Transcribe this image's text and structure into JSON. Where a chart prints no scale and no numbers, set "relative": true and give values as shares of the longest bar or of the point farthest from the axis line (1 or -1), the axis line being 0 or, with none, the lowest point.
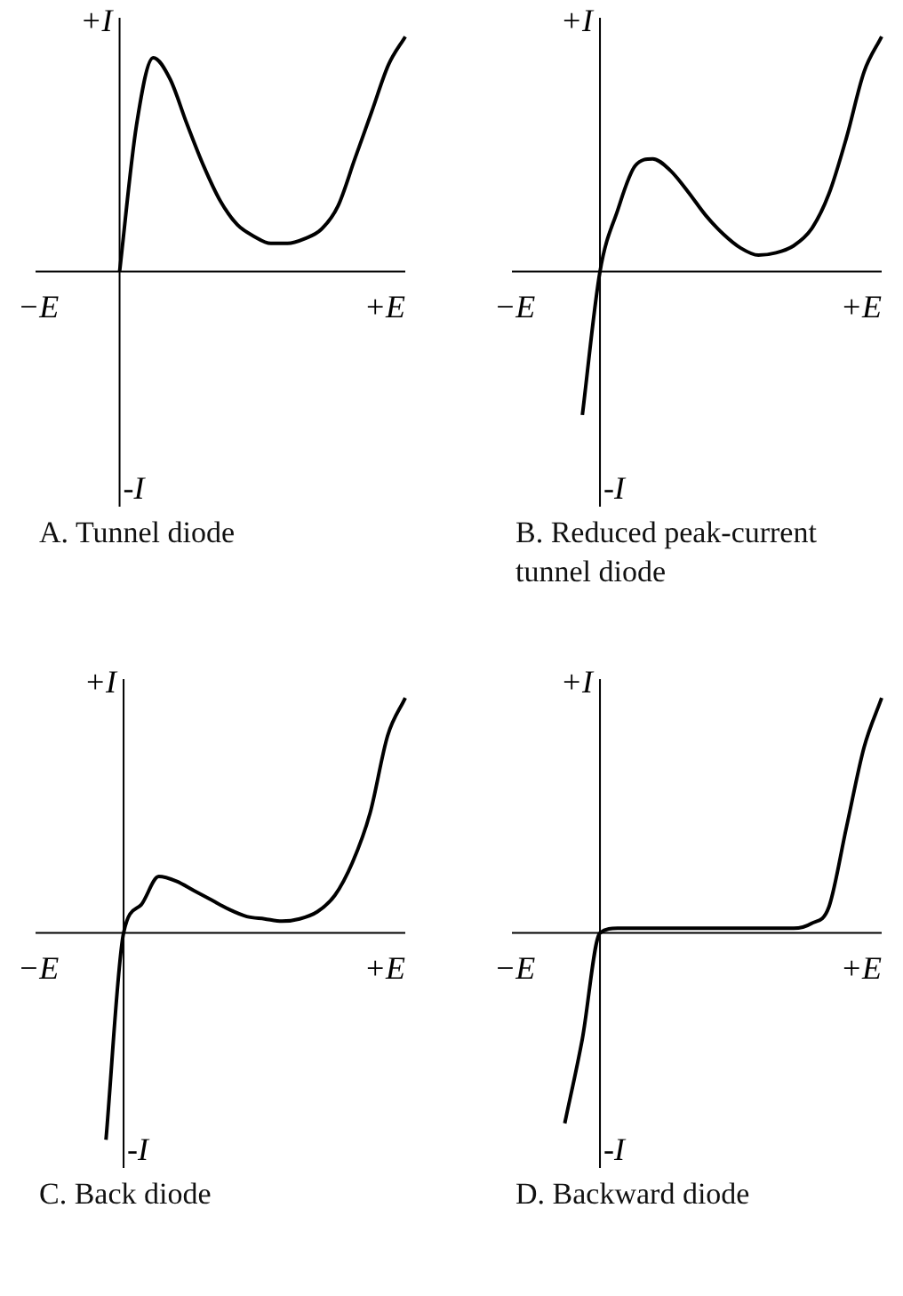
{
  "chart_data": [
    {
      "type": "line",
      "title": "A. Tunnel diode",
      "relative": true,
      "legend": false,
      "marker": "none",
      "color": "#000000",
      "annotations": [
        "+I",
        "−E",
        "+E",
        "-I"
      ],
      "categories": [
        null,
        null,
        null,
        null,
        null,
        null,
        null,
        null,
        null,
        null,
        null,
        null,
        null,
        null,
        null,
        null,
        null,
        null,
        null,
        null,
        null,
        null,
        null
      ],
      "values": [
        null,
        null,
        null,
        null,
        null,
        0,
        0.62,
        0.91,
        0.82,
        0.63,
        0.45,
        0.3,
        0.2,
        0.15,
        0.12,
        0.12,
        0.14,
        0.18,
        0.28,
        0.48,
        0.68,
        0.88,
        1
      ]
    },
    {
      "type": "line",
      "title": "B. Reduced peak-current tunnel diode",
      "relative": true,
      "legend": false,
      "marker": "none",
      "color": "#000000",
      "annotations": [
        "+I",
        "−E",
        "+E",
        "-I"
      ],
      "categories": [
        null,
        null,
        null,
        null,
        null,
        null,
        null,
        null,
        null,
        null,
        null,
        null,
        null,
        null,
        null,
        null,
        null,
        null,
        null,
        null,
        null,
        null
      ],
      "values": [
        null,
        null,
        null,
        null,
        -0.61,
        0,
        0.26,
        0.45,
        0.48,
        0.43,
        0.34,
        0.24,
        0.16,
        0.1,
        0.07,
        0.08,
        0.11,
        0.18,
        0.33,
        0.57,
        0.85,
        1
      ]
    },
    {
      "type": "line",
      "title": "C. Back diode",
      "relative": true,
      "legend": false,
      "marker": "none",
      "color": "#000000",
      "annotations": [
        "+I",
        "−E",
        "+E",
        "-I"
      ],
      "categories": [
        null,
        null,
        null,
        null,
        null,
        null,
        null,
        null,
        null,
        null,
        null,
        null,
        null,
        null,
        null,
        null,
        null,
        null,
        null,
        null,
        null,
        null
      ],
      "values": [
        null,
        null,
        null,
        null,
        -0.88,
        0,
        0.12,
        0.24,
        0.22,
        0.18,
        0.14,
        0.1,
        0.07,
        0.06,
        0.05,
        0.06,
        0.09,
        0.16,
        0.3,
        0.51,
        0.84,
        1
      ]
    },
    {
      "type": "line",
      "title": "D. Backward diode",
      "relative": true,
      "legend": false,
      "marker": "none",
      "color": "#000000",
      "annotations": [
        "+I",
        "−E",
        "+E",
        "-I"
      ],
      "categories": [
        null,
        null,
        null,
        null,
        null,
        null,
        null,
        null,
        null,
        null,
        null,
        null,
        null,
        null,
        null,
        null,
        null,
        null,
        null,
        null,
        null,
        null
      ],
      "values": [
        null,
        null,
        null,
        -0.81,
        -0.45,
        0,
        0.02,
        0.02,
        0.02,
        0.02,
        0.02,
        0.02,
        0.02,
        0.02,
        0.02,
        0.02,
        0.02,
        0.04,
        0.11,
        0.45,
        0.79,
        1
      ]
    }
  ]
}
